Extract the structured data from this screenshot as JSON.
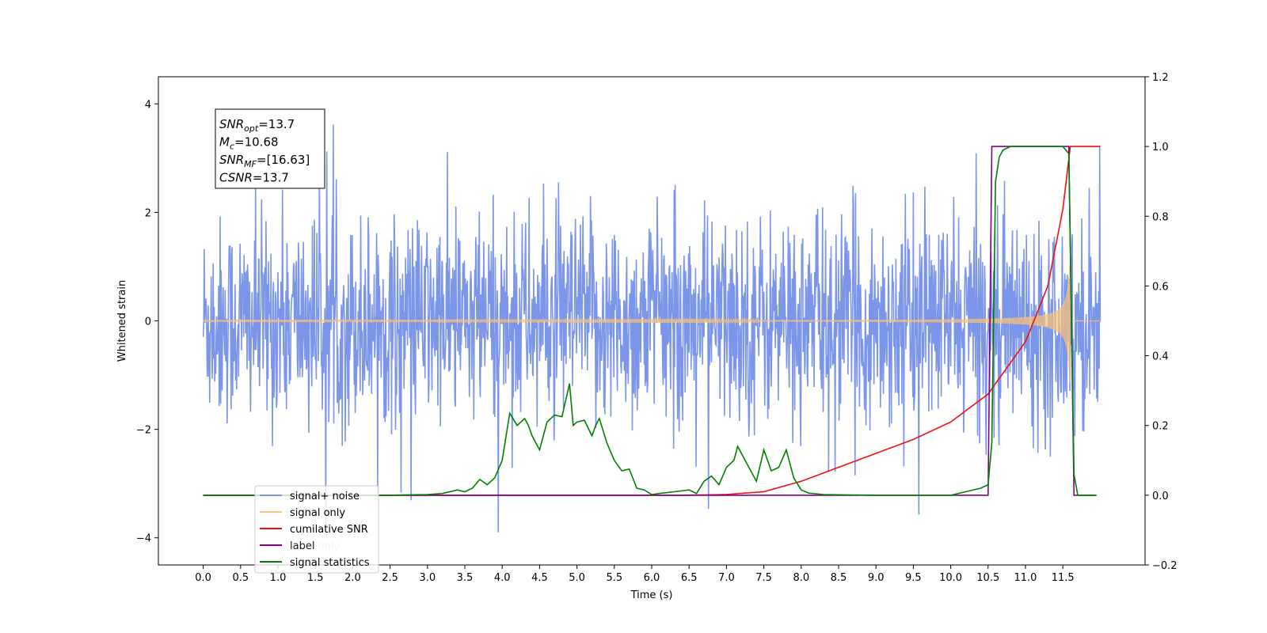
{
  "chart_data": {
    "type": "line",
    "xlabel": "Time (s)",
    "ylabel": "Whitened strain",
    "xlim": [
      -0.6,
      12.6
    ],
    "ylim": [
      -4.5,
      4.5
    ],
    "y2lim": [
      -0.2,
      1.2
    ],
    "x_ticks": [
      0.0,
      0.5,
      1.0,
      1.5,
      2.0,
      2.5,
      3.0,
      3.5,
      4.0,
      4.5,
      5.0,
      5.5,
      6.0,
      6.5,
      7.0,
      7.5,
      8.0,
      8.5,
      9.0,
      9.5,
      10.0,
      10.5,
      11.0,
      11.5
    ],
    "x_tick_labels": [
      "0.0",
      "0.5",
      "1.0",
      "1.5",
      "2.0",
      "2.5",
      "3.0",
      "3.5",
      "4.0",
      "4.5",
      "5.0",
      "5.5",
      "6.0",
      "6.5",
      "7.0",
      "7.5",
      "8.0",
      "8.5",
      "9.0",
      "9.5",
      "10.0",
      "10.5",
      "11.0",
      "11.5"
    ],
    "y_ticks": [
      -4,
      -2,
      0,
      2,
      4
    ],
    "y_tick_labels": [
      "−4",
      "−2",
      "0",
      "2",
      "4"
    ],
    "y2_ticks": [
      -0.2,
      0.0,
      0.2,
      0.4,
      0.6,
      0.8,
      1.0,
      1.2
    ],
    "y2_tick_labels": [
      "−0.2",
      "0.0",
      "0.2",
      "0.4",
      "0.6",
      "0.8",
      "1.0",
      "1.2"
    ],
    "grid": false,
    "legend_position": "lower-left",
    "annotation": {
      "lines": [
        {
          "main": "SNR",
          "sub": "opt",
          "rest": "=13.7"
        },
        {
          "main": "M",
          "sub": "c",
          "rest": "=10.68"
        },
        {
          "main": "SNR",
          "sub": "MF",
          "rest": "=[16.63]"
        },
        {
          "main": "CSNR",
          "sub": "",
          "rest": "=13.7"
        }
      ]
    },
    "series": [
      {
        "name": "signal+ noise",
        "color": "#7b95e8",
        "axis": "left",
        "style": "dense noise, typical envelope approximately ±2, spikes up to about ±4",
        "t_range": [
          0.0,
          12.0
        ]
      },
      {
        "name": "signal only",
        "color": "#f5c27a",
        "axis": "left",
        "style": "chirp growing from 0 amplitude to about ±1.1 at t≈11.6 then zero",
        "t_range": [
          0.0,
          12.0
        ],
        "merger_time": 11.6
      },
      {
        "name": "cumilative SNR",
        "color": "#ee1111",
        "axis": "right",
        "x": [
          0.0,
          6.5,
          7.0,
          7.5,
          8.0,
          8.5,
          9.0,
          9.5,
          10.0,
          10.5,
          11.0,
          11.3,
          11.5,
          11.6,
          12.0
        ],
        "values": [
          0.0,
          0.0,
          0.002,
          0.01,
          0.04,
          0.08,
          0.12,
          0.16,
          0.21,
          0.29,
          0.44,
          0.6,
          0.82,
          1.0,
          1.0
        ]
      },
      {
        "name": "label",
        "color": "#800080",
        "axis": "right",
        "x": [
          0.0,
          10.5,
          10.55,
          11.58,
          11.65,
          11.95
        ],
        "values": [
          0.0,
          0.0,
          1.0,
          1.0,
          0.0,
          0.0
        ]
      },
      {
        "name": "label only",
        "color": "#aaaaaa",
        "axis": "right"
      },
      {
        "name": "signal statistics",
        "color": "#008000",
        "axis": "right",
        "x": [
          0.0,
          2.5,
          3.0,
          3.2,
          3.4,
          3.5,
          3.6,
          3.7,
          3.8,
          3.9,
          4.0,
          4.1,
          4.2,
          4.3,
          4.35,
          4.4,
          4.5,
          4.6,
          4.7,
          4.8,
          4.9,
          4.95,
          5.0,
          5.1,
          5.2,
          5.25,
          5.3,
          5.4,
          5.5,
          5.6,
          5.7,
          5.8,
          5.9,
          6.0,
          6.1,
          6.3,
          6.5,
          6.6,
          6.7,
          6.8,
          6.9,
          7.0,
          7.1,
          7.15,
          7.2,
          7.3,
          7.4,
          7.5,
          7.6,
          7.7,
          7.8,
          7.9,
          8.0,
          8.1,
          8.3,
          8.6,
          9.0,
          10.0,
          10.2,
          10.4,
          10.5,
          10.55,
          10.6,
          10.65,
          10.7,
          10.8,
          11.0,
          11.5,
          11.58,
          11.65,
          11.7,
          11.95
        ],
        "values": [
          0.0,
          0.0,
          0.002,
          0.005,
          0.015,
          0.01,
          0.02,
          0.045,
          0.03,
          0.05,
          0.1,
          0.235,
          0.2,
          0.22,
          0.2,
          0.17,
          0.13,
          0.21,
          0.23,
          0.225,
          0.32,
          0.2,
          0.21,
          0.215,
          0.17,
          0.2,
          0.22,
          0.15,
          0.1,
          0.07,
          0.075,
          0.02,
          0.015,
          0.002,
          0.005,
          0.01,
          0.015,
          0.005,
          0.04,
          0.055,
          0.03,
          0.08,
          0.1,
          0.14,
          0.12,
          0.08,
          0.04,
          0.13,
          0.07,
          0.08,
          0.13,
          0.05,
          0.015,
          0.006,
          0.002,
          0.001,
          0.0,
          0.0,
          0.01,
          0.02,
          0.03,
          0.15,
          0.9,
          0.97,
          0.99,
          1.0,
          1.0,
          1.0,
          0.98,
          0.06,
          0.0,
          0.0
        ]
      }
    ]
  }
}
